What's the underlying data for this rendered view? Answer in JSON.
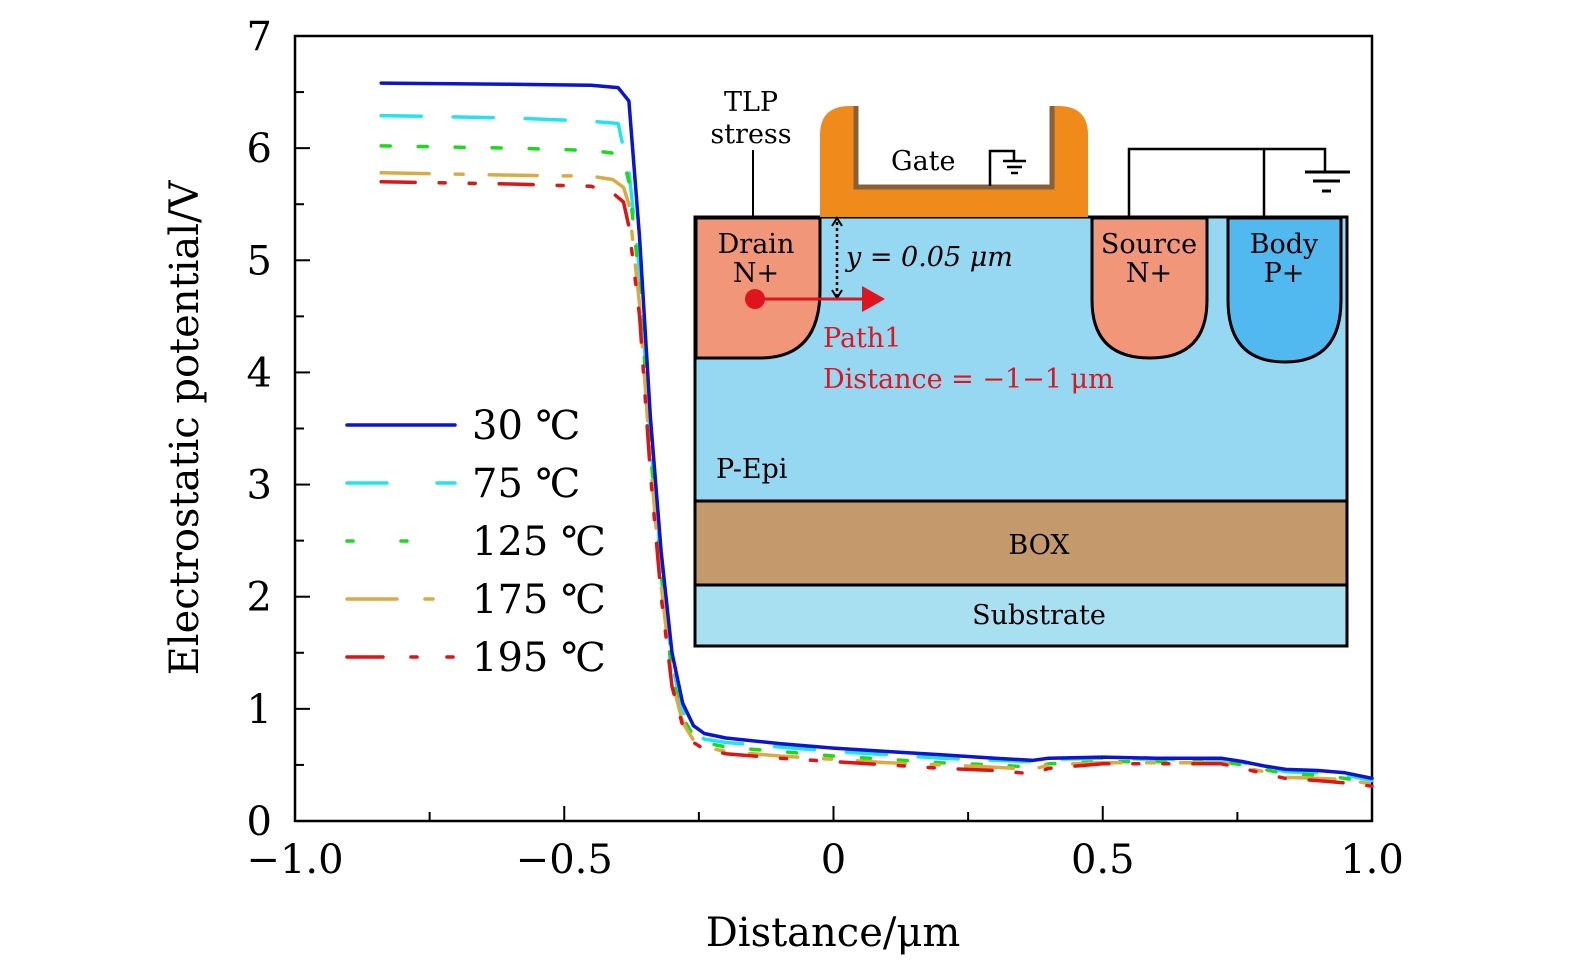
{
  "chart_data": {
    "type": "line",
    "title": "",
    "xlabel": "Distance/μm",
    "ylabel": "Electrostatic potential/V",
    "xlim": [
      -1.0,
      1.0
    ],
    "ylim": [
      0,
      7
    ],
    "x_ticks": [
      -1.0,
      -0.75,
      -0.5,
      -0.25,
      0,
      0.25,
      0.5,
      0.75,
      1.0
    ],
    "x_tick_labels": [
      "−1.0",
      "−0.5",
      "0",
      "0.5",
      "1.0"
    ],
    "x_tick_label_values": [
      -1.0,
      -0.5,
      0,
      0.5,
      1.0
    ],
    "y_ticks": [
      0,
      0.5,
      1,
      1.5,
      2,
      2.5,
      3,
      3.5,
      4,
      4.5,
      5,
      5.5,
      6,
      6.5,
      7
    ],
    "y_tick_labels": [
      "0",
      "1",
      "2",
      "3",
      "4",
      "5",
      "6",
      "7"
    ],
    "y_tick_label_values": [
      0,
      1,
      2,
      3,
      4,
      5,
      6,
      7
    ],
    "grid": false,
    "legend_position": "left-center",
    "series": [
      {
        "name": "30 ℃",
        "color": "#0a14d2",
        "dash": "solid",
        "x": [
          -0.84,
          -0.6,
          -0.45,
          -0.4,
          -0.39,
          -0.38,
          -0.36,
          -0.34,
          -0.32,
          -0.3,
          -0.28,
          -0.26,
          -0.24,
          -0.2,
          -0.1,
          0,
          0.1,
          0.2,
          0.3,
          0.37,
          0.4,
          0.5,
          0.6,
          0.72,
          0.76,
          0.8,
          0.84,
          0.9,
          0.95,
          1.0
        ],
        "y": [
          6.58,
          6.57,
          6.56,
          6.54,
          6.48,
          6.42,
          5.2,
          3.6,
          2.4,
          1.5,
          1.05,
          0.85,
          0.78,
          0.74,
          0.69,
          0.65,
          0.62,
          0.59,
          0.56,
          0.54,
          0.56,
          0.57,
          0.56,
          0.56,
          0.53,
          0.49,
          0.46,
          0.45,
          0.43,
          0.38
        ]
      },
      {
        "name": "75 ℃",
        "color": "#1ee6f0",
        "dash": "long-dash",
        "x": [
          -0.84,
          -0.6,
          -0.45,
          -0.4,
          -0.39,
          -0.38,
          -0.36,
          -0.34,
          -0.32,
          -0.3,
          -0.28,
          -0.26,
          -0.24,
          -0.2,
          -0.1,
          0,
          0.1,
          0.2,
          0.3,
          0.37,
          0.4,
          0.5,
          0.6,
          0.72,
          0.76,
          0.8,
          0.84,
          0.9,
          0.95,
          1.0
        ],
        "y": [
          6.29,
          6.27,
          6.24,
          6.22,
          6.0,
          5.8,
          4.9,
          3.4,
          2.3,
          1.4,
          0.98,
          0.8,
          0.73,
          0.7,
          0.66,
          0.62,
          0.59,
          0.56,
          0.54,
          0.53,
          0.55,
          0.56,
          0.55,
          0.55,
          0.52,
          0.48,
          0.44,
          0.43,
          0.41,
          0.36
        ]
      },
      {
        "name": "125 ℃",
        "color": "#19dc19",
        "dash": "dotted",
        "x": [
          -0.84,
          -0.6,
          -0.45,
          -0.4,
          -0.39,
          -0.38,
          -0.36,
          -0.34,
          -0.32,
          -0.3,
          -0.28,
          -0.26,
          -0.24,
          -0.2,
          -0.1,
          0,
          0.1,
          0.2,
          0.3,
          0.37,
          0.4,
          0.5,
          0.6,
          0.72,
          0.76,
          0.8,
          0.84,
          0.9,
          0.95,
          1.0
        ],
        "y": [
          6.02,
          6.0,
          5.98,
          5.95,
          5.9,
          5.7,
          4.8,
          3.3,
          2.2,
          1.3,
          0.92,
          0.76,
          0.7,
          0.66,
          0.62,
          0.58,
          0.55,
          0.52,
          0.5,
          0.48,
          0.51,
          0.53,
          0.53,
          0.53,
          0.5,
          0.46,
          0.42,
          0.41,
          0.38,
          0.34
        ]
      },
      {
        "name": "175 ℃",
        "color": "#dcaa41",
        "dash": "dash-dot",
        "x": [
          -0.84,
          -0.6,
          -0.45,
          -0.41,
          -0.39,
          -0.38,
          -0.36,
          -0.34,
          -0.32,
          -0.3,
          -0.28,
          -0.26,
          -0.24,
          -0.2,
          -0.1,
          0,
          0.1,
          0.2,
          0.3,
          0.37,
          0.4,
          0.5,
          0.6,
          0.72,
          0.76,
          0.8,
          0.84,
          0.9,
          0.95,
          1.0
        ],
        "y": [
          5.78,
          5.76,
          5.75,
          5.72,
          5.65,
          5.5,
          4.6,
          3.2,
          2.1,
          1.25,
          0.88,
          0.72,
          0.66,
          0.62,
          0.58,
          0.55,
          0.52,
          0.5,
          0.48,
          0.46,
          0.5,
          0.52,
          0.52,
          0.52,
          0.48,
          0.44,
          0.39,
          0.38,
          0.37,
          0.33
        ]
      },
      {
        "name": "195 ℃",
        "color": "#e01414",
        "dash": "dash-dot-dot",
        "x": [
          -0.84,
          -0.6,
          -0.45,
          -0.41,
          -0.39,
          -0.38,
          -0.36,
          -0.34,
          -0.32,
          -0.3,
          -0.28,
          -0.26,
          -0.24,
          -0.2,
          -0.1,
          0,
          0.1,
          0.2,
          0.3,
          0.37,
          0.4,
          0.5,
          0.6,
          0.72,
          0.76,
          0.8,
          0.84,
          0.9,
          0.95,
          1.0
        ],
        "y": [
          5.7,
          5.68,
          5.66,
          5.6,
          5.52,
          5.3,
          4.5,
          3.1,
          2.0,
          1.2,
          0.85,
          0.7,
          0.64,
          0.6,
          0.56,
          0.53,
          0.5,
          0.47,
          0.45,
          0.42,
          0.47,
          0.51,
          0.51,
          0.51,
          0.47,
          0.42,
          0.38,
          0.36,
          0.34,
          0.31
        ]
      }
    ],
    "inset_diagram": {
      "tlp_label_line1": "TLP",
      "tlp_label_line2": "stress",
      "gate_label": "Gate",
      "drain_label_line1": "Drain",
      "drain_label_line2": "N+",
      "source_label_line1": "Source",
      "source_label_line2": "N+",
      "body_label_line1": "Body",
      "body_label_line2": "P+",
      "depth_annotation": "y = 0.05 μm",
      "path_label": "Path1",
      "distance_label": "Distance = −1−1 μm",
      "pepi_label": "P-Epi",
      "box_label": "BOX",
      "substrate_label": "Substrate",
      "colors": {
        "n_plus": "#f2967a",
        "p_plus": "#52b8f0",
        "p_epi": "#96d8f2",
        "substrate": "#a8e0f2",
        "box": "#c49a6c",
        "gate": "#f08a1a",
        "gate_inner_edge": "#8a6038",
        "path_arrow": "#e0141e"
      }
    }
  }
}
